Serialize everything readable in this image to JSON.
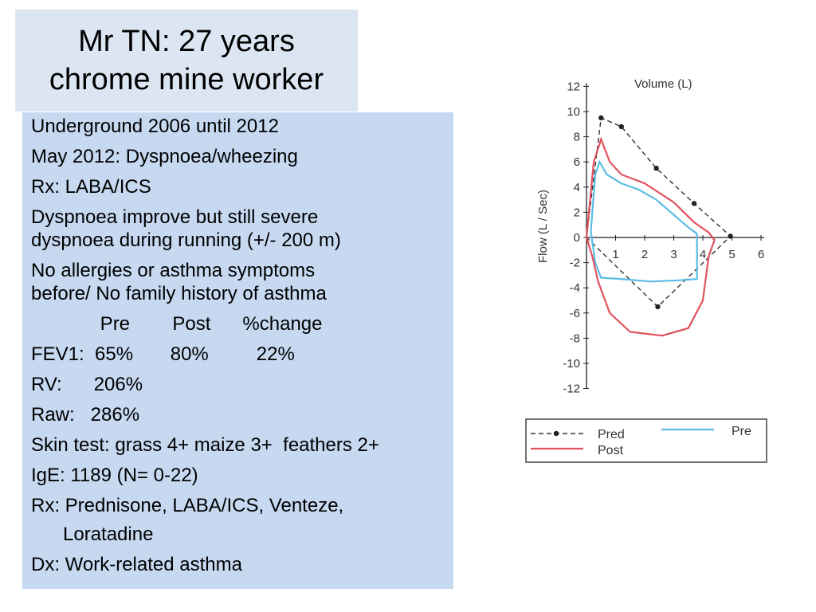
{
  "title": {
    "line1": "Mr TN: 27 years",
    "line2": "chrome mine worker"
  },
  "details": [
    "Underground 2006 until 2012",
    "May 2012: Dyspnoea/wheezing",
    "Rx: LABA/ICS",
    "Dyspnoea improve but still severe",
    "dyspnoea during running (+/- 200 m)",
    "No allergies or asthma symptoms",
    "before/ No family history of asthma",
    "             Pre        Post      %change",
    "FEV1:  65%       80%         22%",
    "RV:      206%",
    "Raw:   286%",
    "Skin test: grass 4+ maize 3+  feathers 2+",
    "IgE: 1189 (N= 0-22)",
    "Rx: Prednisone, LABA/ICS, Venteze,",
    "      Loratadine",
    "Dx: Work-related asthma"
  ],
  "chart_data": {
    "type": "line",
    "xlabel": "Volume (L)",
    "ylabel": "Flow (L / Sec)",
    "xlim": [
      0,
      6
    ],
    "ylim": [
      -12,
      12
    ],
    "x_ticks": [
      1,
      2,
      3,
      4,
      5,
      6
    ],
    "y_ticks": [
      12,
      10,
      8,
      6,
      4,
      2,
      0,
      -2,
      -4,
      -6,
      -8,
      -10,
      -12
    ],
    "legend": {
      "placement": "bottom"
    },
    "series": [
      {
        "name": "Pred",
        "color": "#333333",
        "style": "dashed-with-markers",
        "points": [
          [
            0,
            0
          ],
          [
            0.5,
            9.5
          ],
          [
            1.2,
            8.8
          ],
          [
            2.4,
            5.5
          ],
          [
            3.7,
            2.7
          ],
          [
            4.95,
            0.1
          ],
          [
            2.45,
            -5.5
          ],
          [
            0,
            0
          ]
        ],
        "markers": [
          [
            0.5,
            9.5
          ],
          [
            1.2,
            8.8
          ],
          [
            2.4,
            5.5
          ],
          [
            3.7,
            2.7
          ],
          [
            4.95,
            0.1
          ],
          [
            2.45,
            -5.5
          ]
        ]
      },
      {
        "name": "Pre",
        "color": "#5bbde4",
        "style": "solid",
        "points": [
          [
            0.15,
            0.5
          ],
          [
            0.3,
            5.0
          ],
          [
            0.45,
            6.0
          ],
          [
            0.7,
            5.0
          ],
          [
            1.2,
            4.3
          ],
          [
            1.8,
            3.8
          ],
          [
            2.4,
            3.0
          ],
          [
            3.0,
            1.8
          ],
          [
            3.5,
            0.8
          ],
          [
            3.8,
            0.3
          ],
          [
            3.8,
            -3.3
          ],
          [
            3.2,
            -3.4
          ],
          [
            2.2,
            -3.5
          ],
          [
            1.2,
            -3.3
          ],
          [
            0.5,
            -3.2
          ],
          [
            0.3,
            -2.0
          ],
          [
            0.15,
            0.5
          ]
        ]
      },
      {
        "name": "Post",
        "color": "#e0525e",
        "style": "solid",
        "points": [
          [
            0,
            0
          ],
          [
            0.25,
            6.0
          ],
          [
            0.5,
            7.8
          ],
          [
            0.8,
            6.0
          ],
          [
            1.2,
            5.0
          ],
          [
            2.0,
            4.3
          ],
          [
            3.0,
            2.8
          ],
          [
            3.7,
            1.2
          ],
          [
            4.2,
            0.4
          ],
          [
            4.4,
            -0.2
          ],
          [
            4.2,
            -1.5
          ],
          [
            4.0,
            -5.0
          ],
          [
            3.5,
            -7.2
          ],
          [
            2.6,
            -7.8
          ],
          [
            1.5,
            -7.5
          ],
          [
            0.8,
            -6.0
          ],
          [
            0.4,
            -3.5
          ],
          [
            0.2,
            -1.5
          ],
          [
            0,
            0
          ]
        ]
      }
    ]
  }
}
